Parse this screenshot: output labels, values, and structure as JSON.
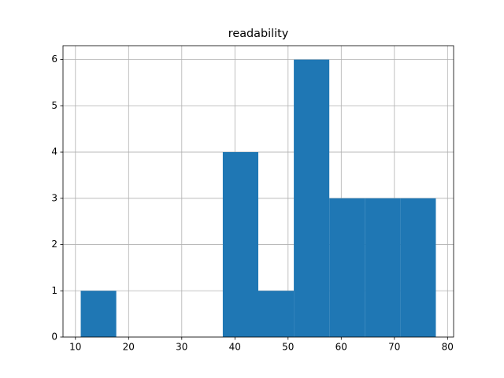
{
  "chart_data": {
    "type": "histogram",
    "title": "readability",
    "bins": [
      11,
      17.68,
      24.36,
      31.04,
      37.72,
      44.4,
      51.08,
      57.76,
      64.44,
      71.12,
      77.8
    ],
    "values": [
      1,
      0,
      0,
      0,
      4,
      1,
      6,
      3,
      3,
      3
    ],
    "color": "#1f77b4",
    "xlim": [
      7.66,
      81.14
    ],
    "xticks": [
      10,
      20,
      30,
      40,
      50,
      60,
      70,
      80
    ],
    "ylim": [
      0,
      6.3
    ],
    "yticks": [
      0,
      1,
      2,
      3,
      4,
      5,
      6
    ],
    "grid": true
  }
}
